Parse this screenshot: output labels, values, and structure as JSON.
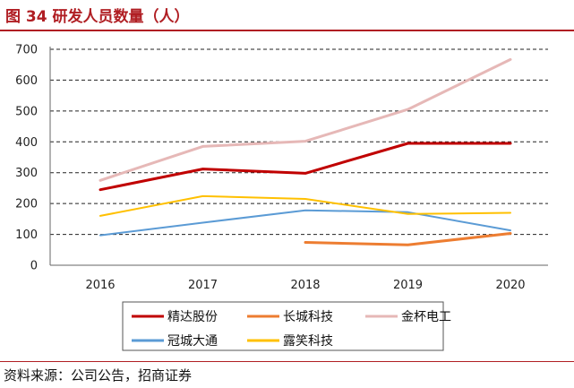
{
  "figure": {
    "title": "图 34  研发人员数量（人）",
    "source": "资料来源：公司公告，招商证券"
  },
  "chart_data": {
    "type": "line",
    "x": [
      "2016",
      "2017",
      "2018",
      "2019",
      "2020"
    ],
    "ylim": [
      0,
      700
    ],
    "yticks": [
      0,
      100,
      200,
      300,
      400,
      500,
      600,
      700
    ],
    "grid": "horizontal dashed",
    "legend_position": "bottom",
    "series": [
      {
        "name": "精达股份",
        "color": "#c00000",
        "values": [
          245,
          312,
          298,
          395,
          395
        ]
      },
      {
        "name": "长城科技",
        "color": "#ed7d31",
        "values": [
          null,
          null,
          74,
          66,
          103
        ]
      },
      {
        "name": "金杯电工",
        "color": "#e6b8b7",
        "values": [
          275,
          385,
          402,
          505,
          667
        ]
      },
      {
        "name": "冠城大通",
        "color": "#5b9bd5",
        "values": [
          97,
          138,
          178,
          172,
          113
        ]
      },
      {
        "name": "露笑科技",
        "color": "#ffc000",
        "values": [
          160,
          224,
          215,
          166,
          170
        ]
      }
    ]
  }
}
